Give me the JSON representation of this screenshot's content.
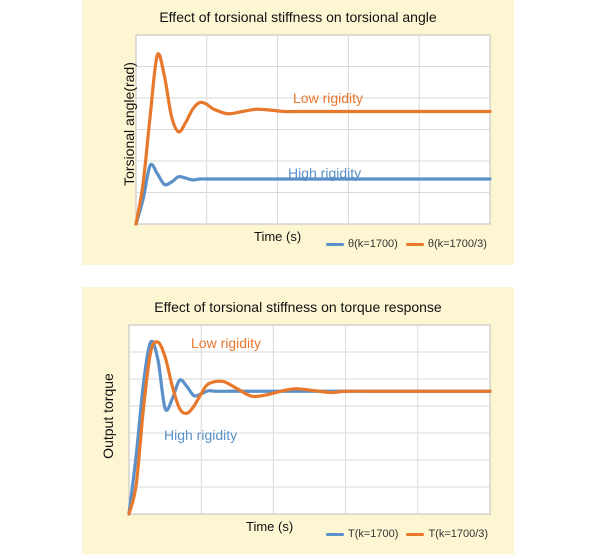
{
  "colors": {
    "series_orange": "#e8782c",
    "series_blue": "#5b91c8",
    "panel_bg": "#fdf6d3",
    "grid": "#d9d9d9"
  },
  "chart_data": [
    {
      "type": "line",
      "title": "Effect of torsional stiffness on torsional angle",
      "xlabel": "Time (s)",
      "ylabel": "Torsional angle(rad)",
      "grid": true,
      "legend_position": "bottom-right",
      "annotations": [
        {
          "text": "Low rigidity",
          "series": 1
        },
        {
          "text": "High rigidity",
          "series": 0
        }
      ],
      "series": [
        {
          "name": "θ(k=1700)",
          "color": "#5b91c8",
          "x": [
            0,
            0.1,
            0.2,
            0.3,
            0.4,
            0.5,
            0.6,
            0.7,
            0.8,
            0.9,
            1.0,
            1.2,
            1.5,
            2.0,
            2.5,
            3.0,
            3.5,
            4.0,
            4.5,
            5.0
          ],
          "y": [
            0,
            0.55,
            1.3,
            1.12,
            0.88,
            0.93,
            1.05,
            1.02,
            0.98,
            1.0,
            1.0,
            1.0,
            1.0,
            1.0,
            1.0,
            1.0,
            1.0,
            1.0,
            1.0,
            1.0
          ]
        },
        {
          "name": "θ(k=1700/3)",
          "color": "#e8782c",
          "x": [
            0,
            0.1,
            0.2,
            0.3,
            0.4,
            0.5,
            0.6,
            0.7,
            0.8,
            0.9,
            1.0,
            1.1,
            1.3,
            1.5,
            1.7,
            1.9,
            2.1,
            2.3,
            2.5,
            3.0,
            3.5,
            4.0,
            4.5,
            5.0
          ],
          "y": [
            0,
            0.9,
            2.4,
            3.75,
            3.3,
            2.4,
            2.05,
            2.25,
            2.55,
            2.7,
            2.66,
            2.55,
            2.45,
            2.5,
            2.55,
            2.53,
            2.5,
            2.5,
            2.5,
            2.5,
            2.5,
            2.5,
            2.5,
            2.5
          ]
        }
      ]
    },
    {
      "type": "line",
      "title": "Effect of torsional stiffness on torque response",
      "xlabel": "Time (s)",
      "ylabel": "Output torque",
      "grid": true,
      "legend_position": "bottom-right",
      "annotations": [
        {
          "text": "Low rigidity",
          "series": 1
        },
        {
          "text": "High rigidity",
          "series": 0
        }
      ],
      "series": [
        {
          "name": "T(k=1700)",
          "color": "#5b91c8",
          "x": [
            0,
            0.1,
            0.2,
            0.3,
            0.4,
            0.5,
            0.6,
            0.7,
            0.8,
            0.9,
            1.0,
            1.1,
            1.2,
            1.4,
            1.6,
            1.8,
            2.0,
            2.5,
            3.0,
            4.0,
            5.0
          ],
          "y": [
            0,
            2.4,
            5.3,
            7.0,
            6.3,
            4.3,
            4.7,
            5.45,
            5.2,
            4.82,
            4.9,
            5.02,
            5.0,
            5.0,
            5.0,
            5.0,
            5.0,
            5.0,
            5.0,
            5.0,
            5.0
          ]
        },
        {
          "name": "T(k=1700/3)",
          "color": "#e8782c",
          "x": [
            0,
            0.1,
            0.2,
            0.3,
            0.4,
            0.5,
            0.6,
            0.7,
            0.8,
            0.9,
            1.0,
            1.1,
            1.3,
            1.5,
            1.7,
            1.9,
            2.1,
            2.3,
            2.5,
            2.8,
            3.0,
            3.5,
            4.0,
            5.0
          ],
          "y": [
            0,
            1.2,
            4.3,
            6.6,
            7.0,
            6.4,
            5.2,
            4.3,
            4.1,
            4.4,
            4.9,
            5.3,
            5.4,
            5.1,
            4.8,
            4.85,
            5.0,
            5.1,
            5.05,
            4.95,
            5.0,
            5.0,
            5.0,
            5.0
          ]
        }
      ]
    }
  ]
}
